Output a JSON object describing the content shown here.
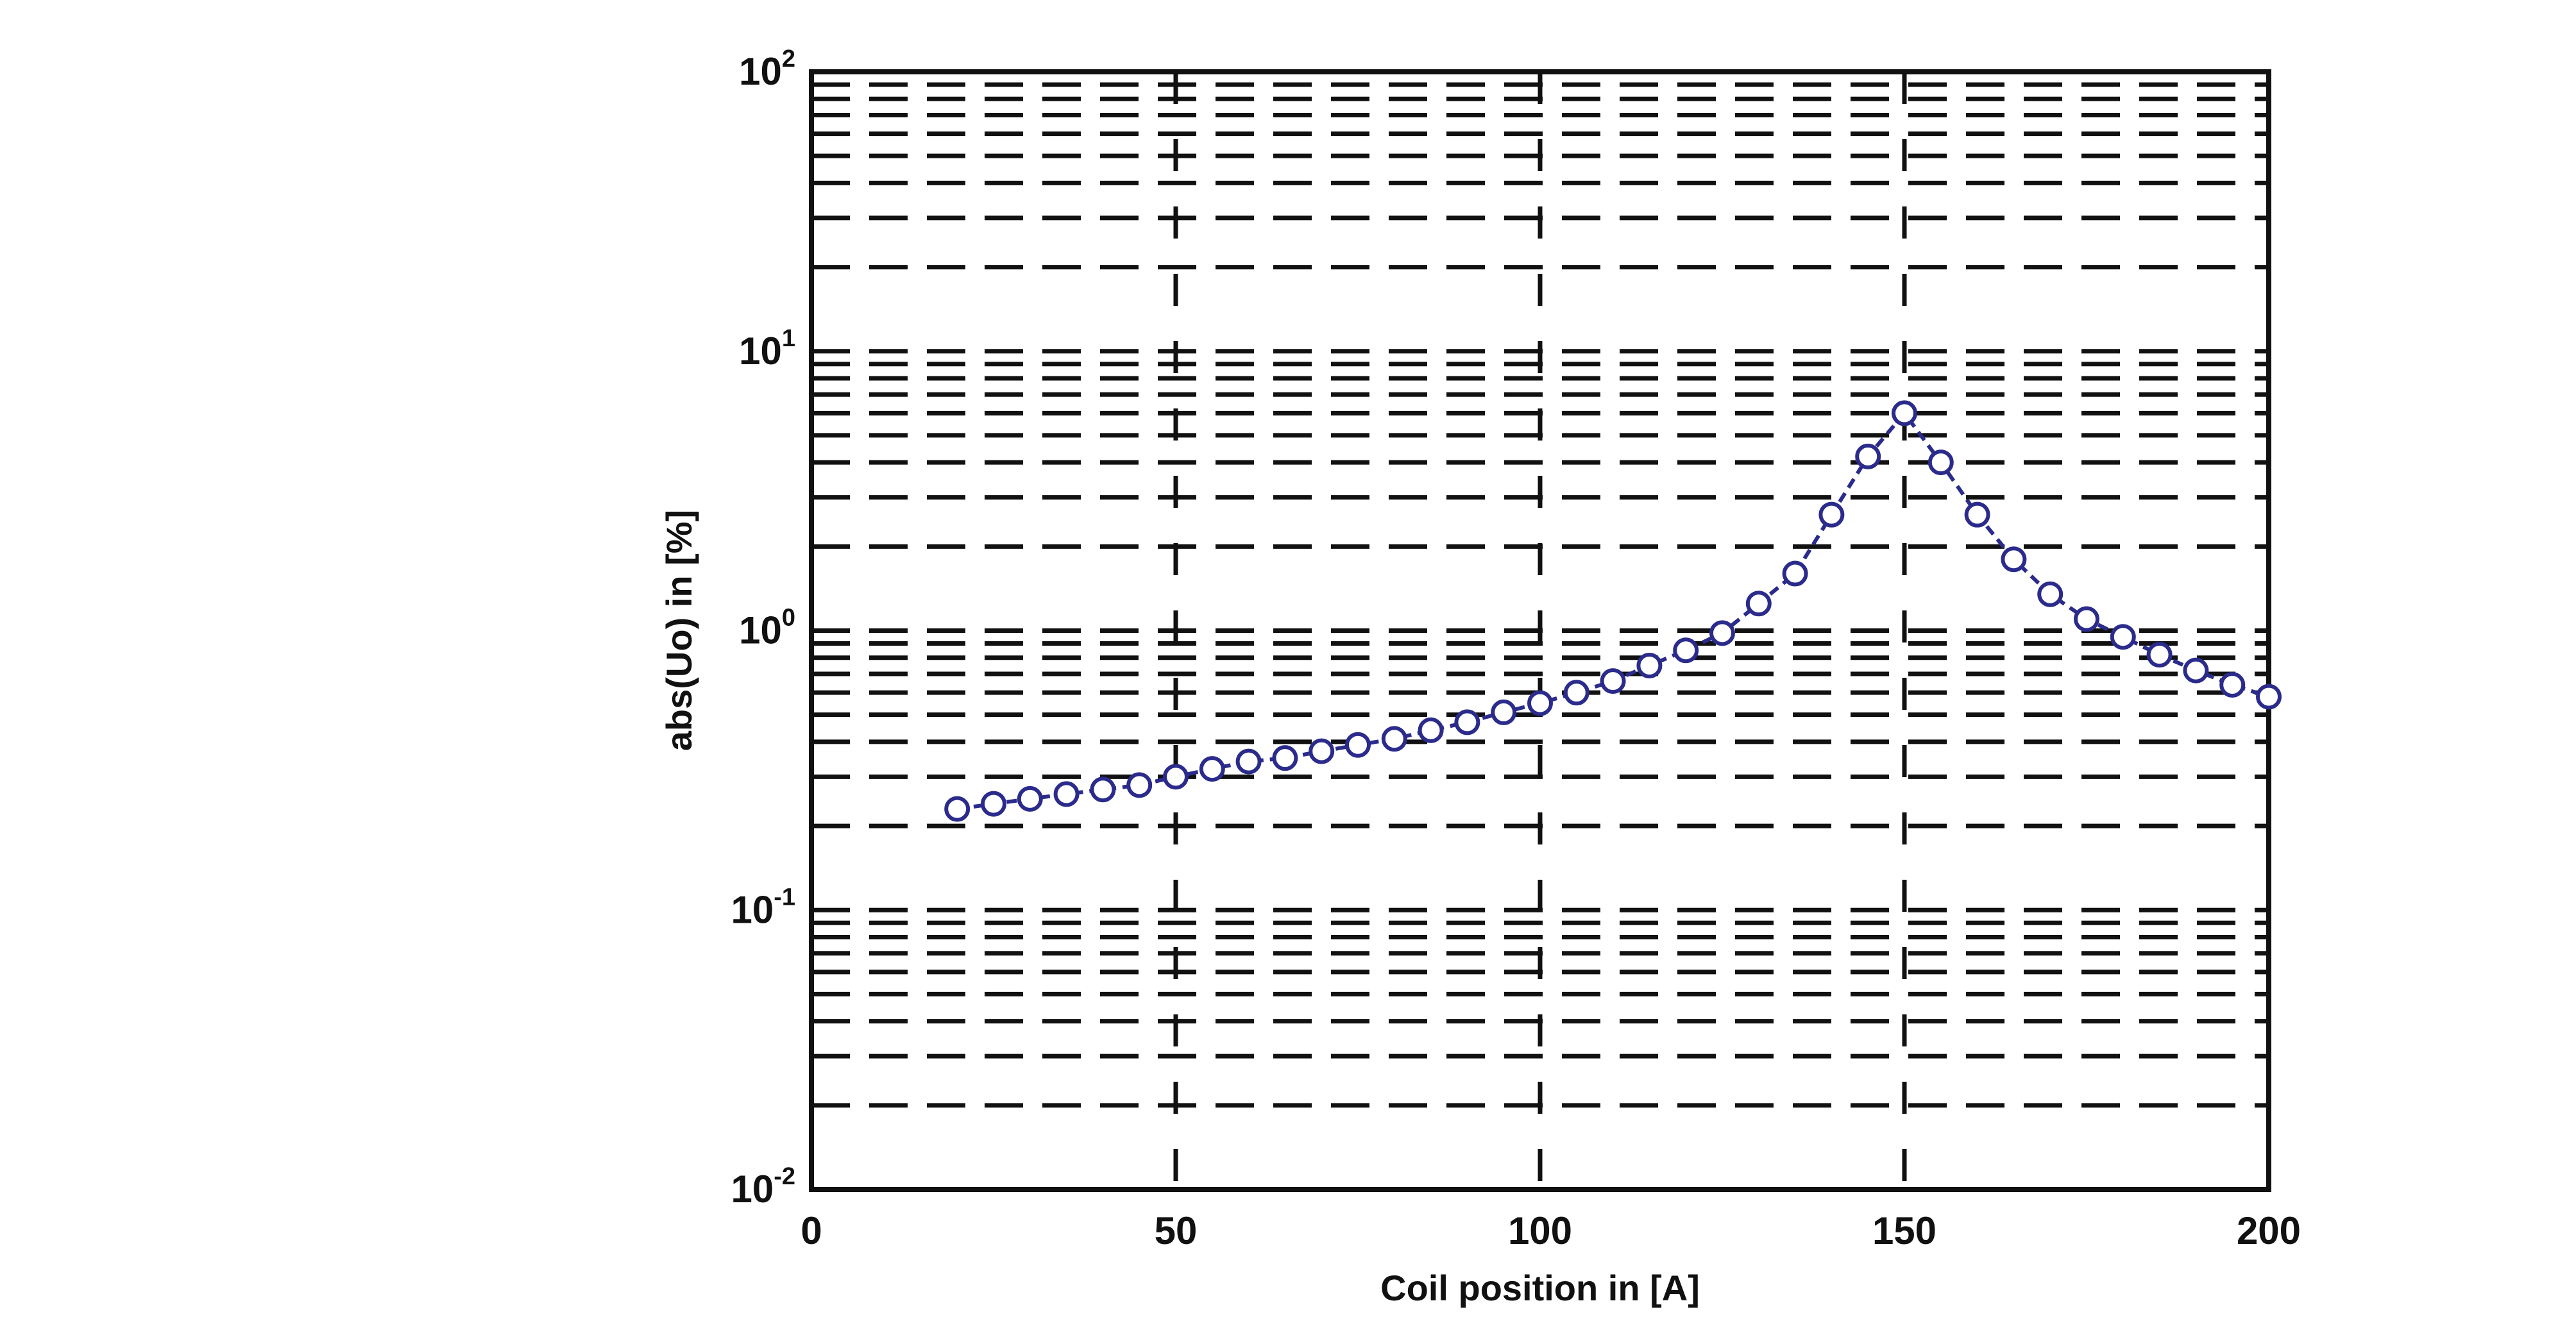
{
  "chart_data": {
    "type": "line",
    "xlabel": "Coil position in [A]",
    "ylabel": "abs(Uo) in [%]",
    "xlim": [
      0,
      200
    ],
    "ylim": [
      0.01,
      100
    ],
    "yscale": "log",
    "grid": true,
    "xticks": [
      "0",
      "50",
      "100",
      "150",
      "200"
    ],
    "yticks": [
      {
        "base": "10",
        "exp": "-2",
        "value": 0.01
      },
      {
        "base": "10",
        "exp": "-1",
        "value": 0.1
      },
      {
        "base": "10",
        "exp": "0",
        "value": 1
      },
      {
        "base": "10",
        "exp": "1",
        "value": 10
      },
      {
        "base": "10",
        "exp": "2",
        "value": 100
      }
    ],
    "series": [
      {
        "color": "#2b2b8c",
        "marker": "circle",
        "line": "dashed",
        "x": [
          20,
          25,
          30,
          35,
          40,
          45,
          50,
          55,
          60,
          65,
          70,
          75,
          80,
          85,
          90,
          95,
          100,
          105,
          110,
          115,
          120,
          125,
          130,
          135,
          140,
          145,
          150,
          155,
          160,
          165,
          170,
          175,
          180,
          185,
          190,
          195,
          200
        ],
        "y": [
          0.23,
          0.24,
          0.25,
          0.26,
          0.27,
          0.28,
          0.3,
          0.32,
          0.34,
          0.35,
          0.37,
          0.39,
          0.41,
          0.44,
          0.47,
          0.51,
          0.55,
          0.6,
          0.66,
          0.75,
          0.85,
          0.98,
          1.25,
          1.6,
          2.6,
          4.2,
          6.0,
          4.0,
          2.6,
          1.8,
          1.35,
          1.1,
          0.95,
          0.82,
          0.72,
          0.64,
          0.58
        ]
      }
    ]
  }
}
